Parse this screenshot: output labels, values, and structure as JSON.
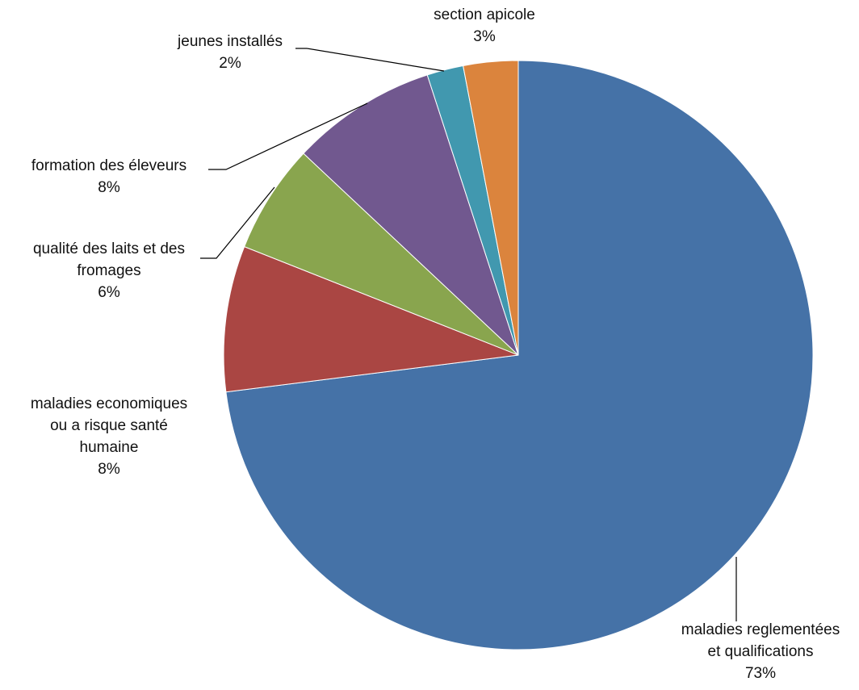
{
  "chart_data": {
    "type": "pie",
    "title": "",
    "slices": [
      {
        "label_lines": [
          "maladies reglementées",
          "et qualifications"
        ],
        "pct_text": "73%",
        "value": 73,
        "color": "#4572A7"
      },
      {
        "label_lines": [
          "maladies economiques",
          "ou a risque santé",
          "humaine"
        ],
        "pct_text": "8%",
        "value": 8,
        "color": "#AA4643"
      },
      {
        "label_lines": [
          "qualité des laits et des",
          "fromages"
        ],
        "pct_text": "6%",
        "value": 6,
        "color": "#89A54E"
      },
      {
        "label_lines": [
          "formation des éleveurs"
        ],
        "pct_text": "8%",
        "value": 8,
        "color": "#71588F"
      },
      {
        "label_lines": [
          "jeunes installés"
        ],
        "pct_text": "2%",
        "value": 2,
        "color": "#4198AF"
      },
      {
        "label_lines": [
          "section apicole"
        ],
        "pct_text": "3%",
        "value": 3,
        "color": "#DB843D"
      }
    ],
    "start_position": "12 o'clock",
    "direction": "clockwise",
    "legend": "none (data labels with leader lines)"
  }
}
